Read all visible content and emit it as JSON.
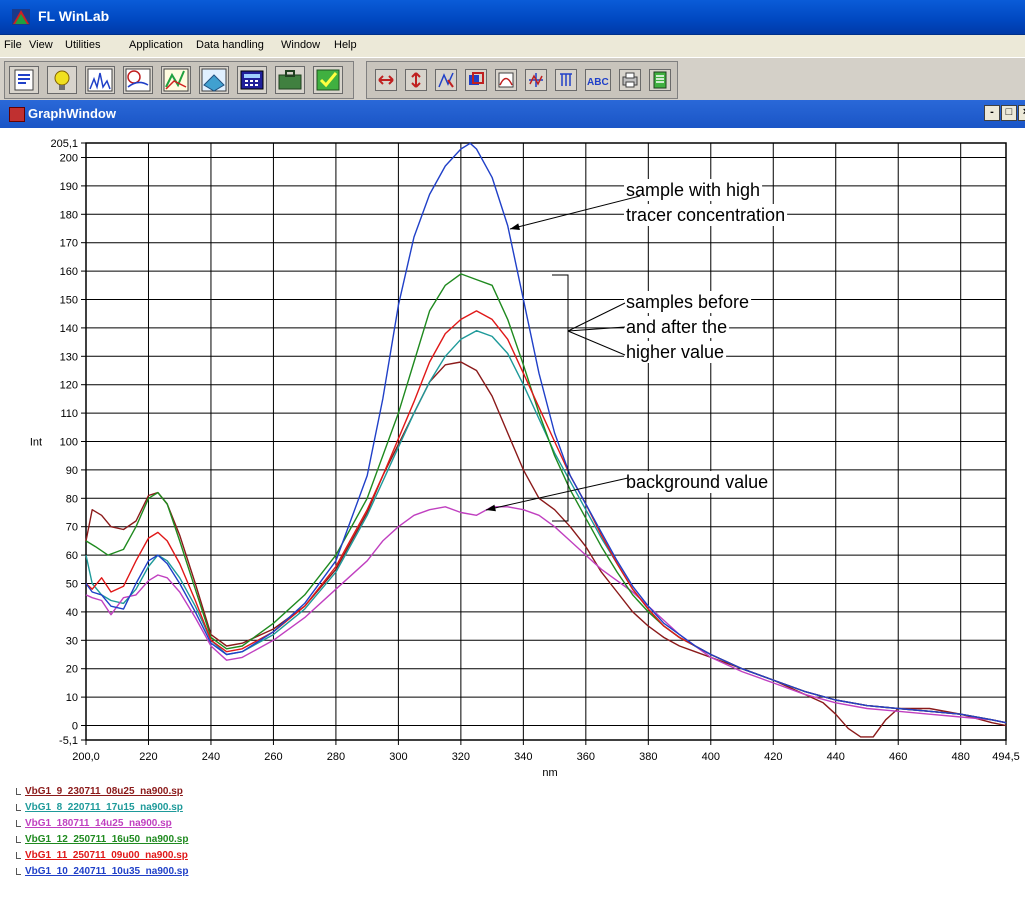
{
  "app": {
    "title": "FL WinLab"
  },
  "menu": [
    "File",
    "View",
    "Utilities",
    "Application",
    "Data handling",
    "Window",
    "Help"
  ],
  "toolbar": {
    "icons_group1": [
      "report-icon",
      "lamp-icon",
      "spectrum-scan-icon",
      "time-drive-icon",
      "3d-scan-icon",
      "contour-icon",
      "calculator-icon",
      "briefcase-icon",
      "checklist-icon"
    ],
    "icons_group2": [
      "expand-x-icon",
      "expand-y-icon",
      "peak-cursor-icon",
      "overlay-icon",
      "smooth-icon",
      "derivative-icon",
      "peak-label-icon",
      "abc-label-icon",
      "print-icon",
      "notes-icon"
    ]
  },
  "graph_window": {
    "title": "GraphWindow",
    "minimize": "-",
    "maximize": "□",
    "close": "×"
  },
  "chart_data": {
    "type": "line",
    "xlabel": "nm",
    "ylabel": "Int",
    "xlim": [
      200.0,
      494.5
    ],
    "ylim": [
      -5.1,
      205.1
    ],
    "grid": true,
    "x_ticks": [
      "200,0",
      "220",
      "240",
      "260",
      "280",
      "300",
      "320",
      "340",
      "360",
      "380",
      "400",
      "420",
      "440",
      "460",
      "480",
      "494,5"
    ],
    "y_ticks": [
      "205,1",
      "200",
      "190",
      "180",
      "170",
      "160",
      "150",
      "140",
      "130",
      "120",
      "110",
      "100",
      "90",
      "80",
      "70",
      "60",
      "50",
      "40",
      "30",
      "20",
      "10",
      "0",
      "-5,1"
    ],
    "series": [
      {
        "name": "VbG1_9_230711_08u25_na900.sp",
        "color": "#8b1a1a",
        "points": [
          [
            200,
            65
          ],
          [
            202,
            76
          ],
          [
            205,
            74
          ],
          [
            208,
            70
          ],
          [
            212,
            69
          ],
          [
            216,
            72
          ],
          [
            220,
            81
          ],
          [
            223,
            82
          ],
          [
            226,
            78
          ],
          [
            230,
            67
          ],
          [
            235,
            50
          ],
          [
            240,
            32
          ],
          [
            245,
            28
          ],
          [
            250,
            29
          ],
          [
            260,
            34
          ],
          [
            270,
            42
          ],
          [
            280,
            55
          ],
          [
            290,
            75
          ],
          [
            295,
            88
          ],
          [
            300,
            99
          ],
          [
            305,
            110
          ],
          [
            310,
            121
          ],
          [
            315,
            127
          ],
          [
            320,
            128
          ],
          [
            325,
            125
          ],
          [
            330,
            116
          ],
          [
            335,
            103
          ],
          [
            340,
            90
          ],
          [
            345,
            80
          ],
          [
            350,
            76
          ],
          [
            355,
            70
          ],
          [
            360,
            63
          ],
          [
            365,
            54
          ],
          [
            370,
            47
          ],
          [
            375,
            40
          ],
          [
            380,
            35
          ],
          [
            385,
            31
          ],
          [
            390,
            28
          ],
          [
            395,
            26
          ],
          [
            400,
            24
          ],
          [
            410,
            20
          ],
          [
            420,
            16
          ],
          [
            430,
            11
          ],
          [
            436,
            8
          ],
          [
            440,
            4
          ],
          [
            444,
            -1
          ],
          [
            448,
            -4
          ],
          [
            452,
            -4
          ],
          [
            456,
            2
          ],
          [
            460,
            6
          ],
          [
            470,
            6
          ],
          [
            480,
            4
          ],
          [
            490,
            1
          ],
          [
            494.5,
            0
          ]
        ]
      },
      {
        "name": "VbG1_8_220711_17u15_na900.sp",
        "color": "#1e9a9a",
        "points": [
          [
            200,
            60
          ],
          [
            202,
            50
          ],
          [
            205,
            46
          ],
          [
            208,
            44
          ],
          [
            212,
            43
          ],
          [
            216,
            48
          ],
          [
            220,
            56
          ],
          [
            223,
            60
          ],
          [
            226,
            58
          ],
          [
            230,
            52
          ],
          [
            235,
            42
          ],
          [
            240,
            30
          ],
          [
            245,
            25
          ],
          [
            250,
            26
          ],
          [
            260,
            32
          ],
          [
            270,
            41
          ],
          [
            280,
            54
          ],
          [
            290,
            74
          ],
          [
            295,
            86
          ],
          [
            300,
            98
          ],
          [
            305,
            110
          ],
          [
            310,
            121
          ],
          [
            315,
            130
          ],
          [
            320,
            136
          ],
          [
            325,
            139
          ],
          [
            330,
            137
          ],
          [
            335,
            131
          ],
          [
            340,
            120
          ],
          [
            345,
            108
          ],
          [
            350,
            96
          ],
          [
            355,
            86
          ],
          [
            360,
            76
          ],
          [
            365,
            66
          ],
          [
            370,
            57
          ],
          [
            375,
            48
          ],
          [
            380,
            41
          ],
          [
            385,
            35
          ],
          [
            390,
            31
          ],
          [
            395,
            28
          ],
          [
            400,
            25
          ],
          [
            410,
            20
          ],
          [
            420,
            16
          ],
          [
            430,
            12
          ],
          [
            440,
            9
          ],
          [
            450,
            7
          ],
          [
            460,
            6
          ],
          [
            470,
            5
          ],
          [
            480,
            4
          ],
          [
            490,
            2
          ],
          [
            494.5,
            1
          ]
        ]
      },
      {
        "name": "VbG1_180711_14u25_na900.sp",
        "color": "#c040c0",
        "points": [
          [
            200,
            46
          ],
          [
            202,
            45
          ],
          [
            205,
            44
          ],
          [
            208,
            39
          ],
          [
            212,
            45
          ],
          [
            216,
            46
          ],
          [
            220,
            51
          ],
          [
            223,
            53
          ],
          [
            226,
            52
          ],
          [
            230,
            47
          ],
          [
            235,
            38
          ],
          [
            240,
            28
          ],
          [
            245,
            23
          ],
          [
            250,
            24
          ],
          [
            260,
            30
          ],
          [
            270,
            38
          ],
          [
            280,
            48
          ],
          [
            290,
            58
          ],
          [
            295,
            65
          ],
          [
            300,
            70
          ],
          [
            305,
            74
          ],
          [
            310,
            76
          ],
          [
            315,
            77
          ],
          [
            320,
            75
          ],
          [
            325,
            74
          ],
          [
            330,
            77
          ],
          [
            335,
            77
          ],
          [
            340,
            76
          ],
          [
            345,
            74
          ],
          [
            350,
            70
          ],
          [
            355,
            65
          ],
          [
            360,
            60
          ],
          [
            365,
            55
          ],
          [
            370,
            51
          ],
          [
            375,
            47
          ],
          [
            380,
            42
          ],
          [
            385,
            37
          ],
          [
            390,
            32
          ],
          [
            395,
            28
          ],
          [
            400,
            24
          ],
          [
            410,
            19
          ],
          [
            420,
            15
          ],
          [
            430,
            11
          ],
          [
            440,
            8
          ],
          [
            450,
            6
          ],
          [
            460,
            5
          ],
          [
            470,
            4
          ],
          [
            480,
            3
          ],
          [
            490,
            2
          ],
          [
            494.5,
            1
          ]
        ]
      },
      {
        "name": "VbG1_12_250711_16u50_na900.sp",
        "color": "#1f8a1f",
        "points": [
          [
            200,
            65
          ],
          [
            203,
            63
          ],
          [
            207,
            60
          ],
          [
            212,
            62
          ],
          [
            216,
            70
          ],
          [
            220,
            80
          ],
          [
            223,
            82
          ],
          [
            226,
            78
          ],
          [
            230,
            65
          ],
          [
            235,
            48
          ],
          [
            240,
            31
          ],
          [
            245,
            27
          ],
          [
            250,
            28
          ],
          [
            260,
            36
          ],
          [
            270,
            46
          ],
          [
            280,
            60
          ],
          [
            290,
            80
          ],
          [
            295,
            95
          ],
          [
            300,
            110
          ],
          [
            305,
            128
          ],
          [
            310,
            146
          ],
          [
            315,
            155
          ],
          [
            320,
            159
          ],
          [
            325,
            157
          ],
          [
            330,
            155
          ],
          [
            335,
            143
          ],
          [
            340,
            127
          ],
          [
            345,
            110
          ],
          [
            350,
            95
          ],
          [
            355,
            83
          ],
          [
            360,
            73
          ],
          [
            365,
            63
          ],
          [
            370,
            54
          ],
          [
            375,
            46
          ],
          [
            380,
            40
          ],
          [
            385,
            35
          ],
          [
            390,
            31
          ],
          [
            395,
            28
          ],
          [
            400,
            25
          ],
          [
            410,
            20
          ],
          [
            420,
            16
          ],
          [
            430,
            12
          ],
          [
            440,
            9
          ],
          [
            450,
            7
          ],
          [
            460,
            6
          ],
          [
            470,
            5
          ],
          [
            480,
            4
          ],
          [
            490,
            2
          ],
          [
            494.5,
            1
          ]
        ]
      },
      {
        "name": "VbG1_11_250711_09u00_na900.sp",
        "color": "#e01818",
        "points": [
          [
            200,
            50
          ],
          [
            202,
            48
          ],
          [
            205,
            52
          ],
          [
            208,
            47
          ],
          [
            212,
            49
          ],
          [
            216,
            58
          ],
          [
            220,
            66
          ],
          [
            223,
            68
          ],
          [
            226,
            65
          ],
          [
            230,
            57
          ],
          [
            235,
            44
          ],
          [
            240,
            30
          ],
          [
            245,
            26
          ],
          [
            250,
            27
          ],
          [
            260,
            33
          ],
          [
            270,
            42
          ],
          [
            280,
            56
          ],
          [
            290,
            76
          ],
          [
            295,
            88
          ],
          [
            300,
            101
          ],
          [
            305,
            114
          ],
          [
            310,
            128
          ],
          [
            315,
            138
          ],
          [
            320,
            143
          ],
          [
            325,
            146
          ],
          [
            330,
            143
          ],
          [
            335,
            136
          ],
          [
            340,
            124
          ],
          [
            345,
            112
          ],
          [
            350,
            100
          ],
          [
            355,
            88
          ],
          [
            360,
            78
          ],
          [
            365,
            67
          ],
          [
            370,
            57
          ],
          [
            375,
            48
          ],
          [
            380,
            41
          ],
          [
            385,
            35
          ],
          [
            390,
            31
          ],
          [
            395,
            28
          ],
          [
            400,
            25
          ],
          [
            410,
            20
          ],
          [
            420,
            16
          ],
          [
            430,
            12
          ],
          [
            440,
            9
          ],
          [
            450,
            7
          ],
          [
            460,
            6
          ],
          [
            470,
            5
          ],
          [
            480,
            4
          ],
          [
            490,
            2
          ],
          [
            494.5,
            1
          ]
        ]
      },
      {
        "name": "VbG1_10_240711_10u35_na900.sp",
        "color": "#2040c8",
        "points": [
          [
            200,
            50
          ],
          [
            202,
            47
          ],
          [
            205,
            46
          ],
          [
            208,
            42
          ],
          [
            212,
            41
          ],
          [
            216,
            50
          ],
          [
            220,
            58
          ],
          [
            223,
            60
          ],
          [
            226,
            57
          ],
          [
            230,
            50
          ],
          [
            235,
            40
          ],
          [
            240,
            29
          ],
          [
            245,
            25
          ],
          [
            250,
            26
          ],
          [
            260,
            33
          ],
          [
            270,
            43
          ],
          [
            280,
            58
          ],
          [
            290,
            88
          ],
          [
            295,
            115
          ],
          [
            300,
            148
          ],
          [
            305,
            172
          ],
          [
            310,
            187
          ],
          [
            315,
            197
          ],
          [
            320,
            203
          ],
          [
            323,
            205
          ],
          [
            325,
            203
          ],
          [
            330,
            193
          ],
          [
            335,
            176
          ],
          [
            340,
            150
          ],
          [
            345,
            124
          ],
          [
            350,
            103
          ],
          [
            355,
            88
          ],
          [
            360,
            78
          ],
          [
            365,
            68
          ],
          [
            370,
            58
          ],
          [
            375,
            49
          ],
          [
            380,
            42
          ],
          [
            385,
            36
          ],
          [
            390,
            32
          ],
          [
            395,
            28
          ],
          [
            400,
            25
          ],
          [
            410,
            20
          ],
          [
            420,
            16
          ],
          [
            430,
            12
          ],
          [
            440,
            9
          ],
          [
            450,
            7
          ],
          [
            460,
            6
          ],
          [
            470,
            5
          ],
          [
            480,
            4
          ],
          [
            490,
            2
          ],
          [
            494.5,
            1
          ]
        ]
      }
    ],
    "annotations": [
      {
        "lines": [
          "sample with high",
          "tracer concentration"
        ]
      },
      {
        "lines": [
          "samples before",
          "and after the",
          "higher value"
        ]
      },
      {
        "lines": [
          "background value"
        ]
      }
    ]
  }
}
